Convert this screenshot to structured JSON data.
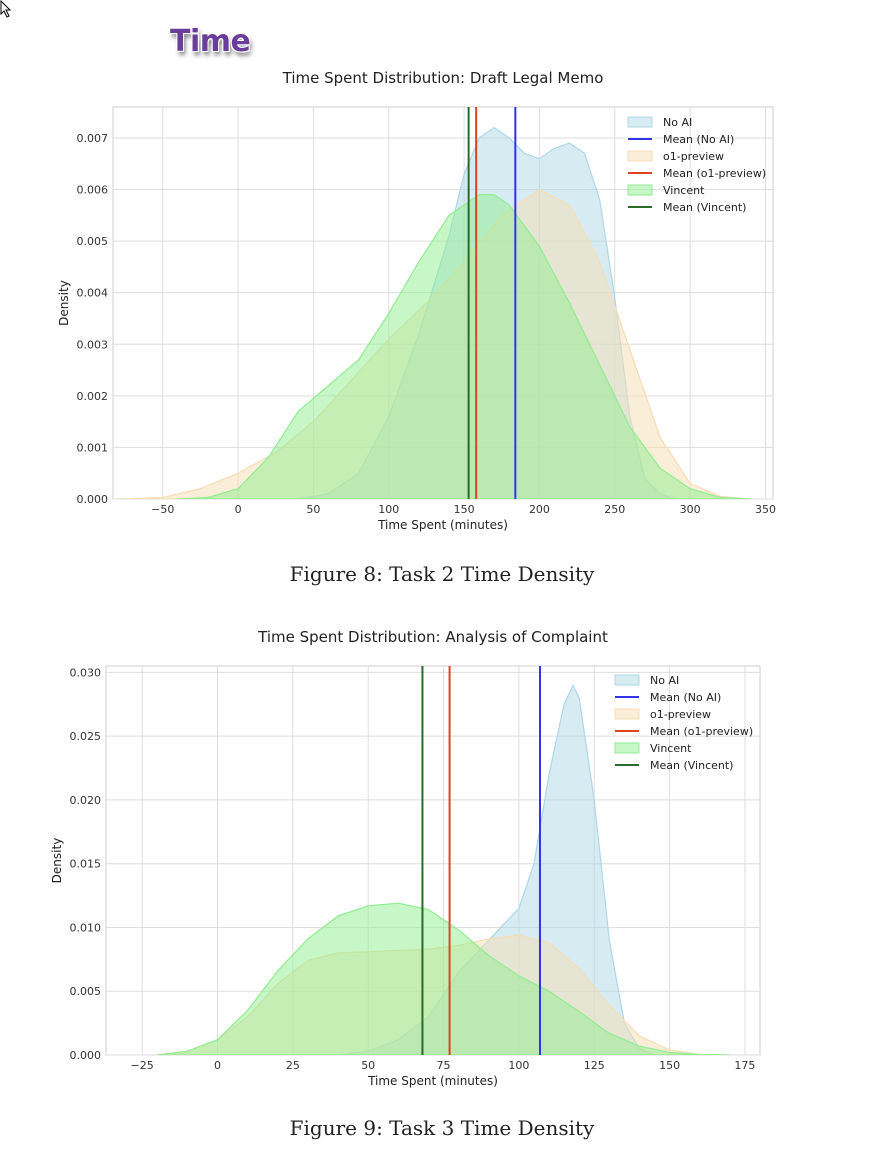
{
  "section_title": "Time",
  "colors": {
    "no_ai_fill": "#add8e6",
    "no_ai_mean": "#3333ee",
    "o1_fill": "#f5deb3",
    "o1_mean": "#dd4422",
    "vincent_fill": "#90ee90",
    "vincent_mean": "#2a6a2a"
  },
  "figures": [
    {
      "caption": "Figure 8:  Task 2 Time Density"
    },
    {
      "caption": "Figure 9:  Task 3 Time Density"
    }
  ],
  "chart_data": [
    {
      "type": "area",
      "title": "Time Spent Distribution: Draft Legal Memo",
      "xlabel": "Time Spent (minutes)",
      "ylabel": "Density",
      "xlim": [
        -83,
        355
      ],
      "ylim": [
        0,
        0.0076
      ],
      "xticks": [
        -50,
        0,
        50,
        100,
        150,
        200,
        250,
        300,
        350
      ],
      "xtick_labels": [
        "−50",
        "0",
        "50",
        "100",
        "150",
        "200",
        "250",
        "300",
        "350"
      ],
      "yticks": [
        0,
        0.001,
        0.002,
        0.003,
        0.004,
        0.005,
        0.006,
        0.007
      ],
      "ytick_labels": [
        "0.000",
        "0.001",
        "0.002",
        "0.003",
        "0.004",
        "0.005",
        "0.006",
        "0.007"
      ],
      "grid": true,
      "legend_position": "top-right",
      "legend": [
        "No AI",
        "Mean (No AI)",
        "o1-preview",
        "Mean (o1-preview)",
        "Vincent",
        "Mean (Vincent)"
      ],
      "series": [
        {
          "name": "No AI",
          "kind": "density",
          "x": [
            40,
            60,
            80,
            100,
            120,
            140,
            150,
            160,
            170,
            180,
            190,
            200,
            210,
            220,
            230,
            240,
            250,
            260,
            270,
            280,
            290
          ],
          "y": [
            0,
            0.0001,
            0.0005,
            0.0016,
            0.0032,
            0.0051,
            0.0063,
            0.007,
            0.0072,
            0.007,
            0.0067,
            0.0066,
            0.0068,
            0.0069,
            0.0067,
            0.0058,
            0.0039,
            0.0016,
            0.0004,
            0.0001,
            0
          ]
        },
        {
          "name": "o1-preview",
          "kind": "density",
          "x": [
            -80,
            -50,
            -25,
            0,
            25,
            50,
            75,
            100,
            125,
            150,
            175,
            200,
            220,
            240,
            260,
            280,
            300,
            320,
            340
          ],
          "y": [
            0,
            3e-05,
            0.0002,
            0.0005,
            0.0009,
            0.0015,
            0.0023,
            0.0031,
            0.0038,
            0.0046,
            0.0055,
            0.006,
            0.0057,
            0.0046,
            0.0029,
            0.0012,
            0.0003,
            5e-05,
            0
          ]
        },
        {
          "name": "Vincent",
          "kind": "density",
          "x": [
            -40,
            -20,
            0,
            20,
            40,
            60,
            80,
            100,
            120,
            140,
            160,
            170,
            180,
            200,
            220,
            240,
            260,
            280,
            300,
            320,
            340
          ],
          "y": [
            0,
            3e-05,
            0.0002,
            0.0008,
            0.0017,
            0.0022,
            0.0027,
            0.0036,
            0.0046,
            0.0055,
            0.0059,
            0.0059,
            0.0057,
            0.0049,
            0.0038,
            0.0026,
            0.0014,
            0.0006,
            0.0002,
            3e-05,
            0
          ]
        },
        {
          "name": "Mean (No AI)",
          "kind": "vline",
          "value": 184
        },
        {
          "name": "Mean (o1-preview)",
          "kind": "vline",
          "value": 158
        },
        {
          "name": "Mean (Vincent)",
          "kind": "vline",
          "value": 153
        }
      ]
    },
    {
      "type": "area",
      "title": "Time Spent Distribution: Analysis of Complaint",
      "xlabel": "Time Spent (minutes)",
      "ylabel": "Density",
      "xlim": [
        -37,
        180
      ],
      "ylim": [
        0,
        0.0305
      ],
      "xticks": [
        -25,
        0,
        25,
        50,
        75,
        100,
        125,
        150,
        175
      ],
      "xtick_labels": [
        "−25",
        "0",
        "25",
        "50",
        "75",
        "100",
        "125",
        "150",
        "175"
      ],
      "yticks": [
        0,
        0.005,
        0.01,
        0.015,
        0.02,
        0.025,
        0.03
      ],
      "ytick_labels": [
        "0.000",
        "0.005",
        "0.010",
        "0.015",
        "0.020",
        "0.025",
        "0.030"
      ],
      "grid": true,
      "legend_position": "top-right",
      "legend": [
        "No AI",
        "Mean (No AI)",
        "o1-preview",
        "Mean (o1-preview)",
        "Vincent",
        "Mean (Vincent)"
      ],
      "series": [
        {
          "name": "No AI",
          "kind": "density",
          "x": [
            40,
            50,
            60,
            70,
            80,
            90,
            100,
            105,
            110,
            115,
            118,
            120,
            125,
            130,
            135,
            140,
            145
          ],
          "y": [
            0,
            0.0003,
            0.0012,
            0.003,
            0.0065,
            0.009,
            0.0115,
            0.015,
            0.022,
            0.0275,
            0.029,
            0.028,
            0.02,
            0.009,
            0.0025,
            0.0005,
            0
          ]
        },
        {
          "name": "o1-preview",
          "kind": "density",
          "x": [
            -20,
            -10,
            0,
            10,
            20,
            30,
            40,
            50,
            60,
            70,
            80,
            90,
            100,
            110,
            120,
            130,
            140,
            150,
            160,
            170
          ],
          "y": [
            0,
            0.0003,
            0.0012,
            0.003,
            0.0056,
            0.0074,
            0.008,
            0.0081,
            0.0082,
            0.0083,
            0.0086,
            0.0091,
            0.0094,
            0.0088,
            0.0068,
            0.0039,
            0.0015,
            0.0004,
            5e-05,
            0
          ]
        },
        {
          "name": "Vincent",
          "kind": "density",
          "x": [
            -20,
            -10,
            0,
            10,
            20,
            30,
            40,
            50,
            60,
            70,
            80,
            90,
            100,
            110,
            120,
            130,
            140,
            150,
            160,
            170
          ],
          "y": [
            0,
            0.0003,
            0.0012,
            0.0035,
            0.0066,
            0.0091,
            0.0109,
            0.0117,
            0.0119,
            0.0114,
            0.0098,
            0.0078,
            0.0062,
            0.005,
            0.0034,
            0.0017,
            0.0007,
            0.0002,
            3e-05,
            0
          ]
        },
        {
          "name": "Mean (No AI)",
          "kind": "vline",
          "value": 107
        },
        {
          "name": "Mean (o1-preview)",
          "kind": "vline",
          "value": 77
        },
        {
          "name": "Mean (Vincent)",
          "kind": "vline",
          "value": 68
        }
      ]
    }
  ]
}
